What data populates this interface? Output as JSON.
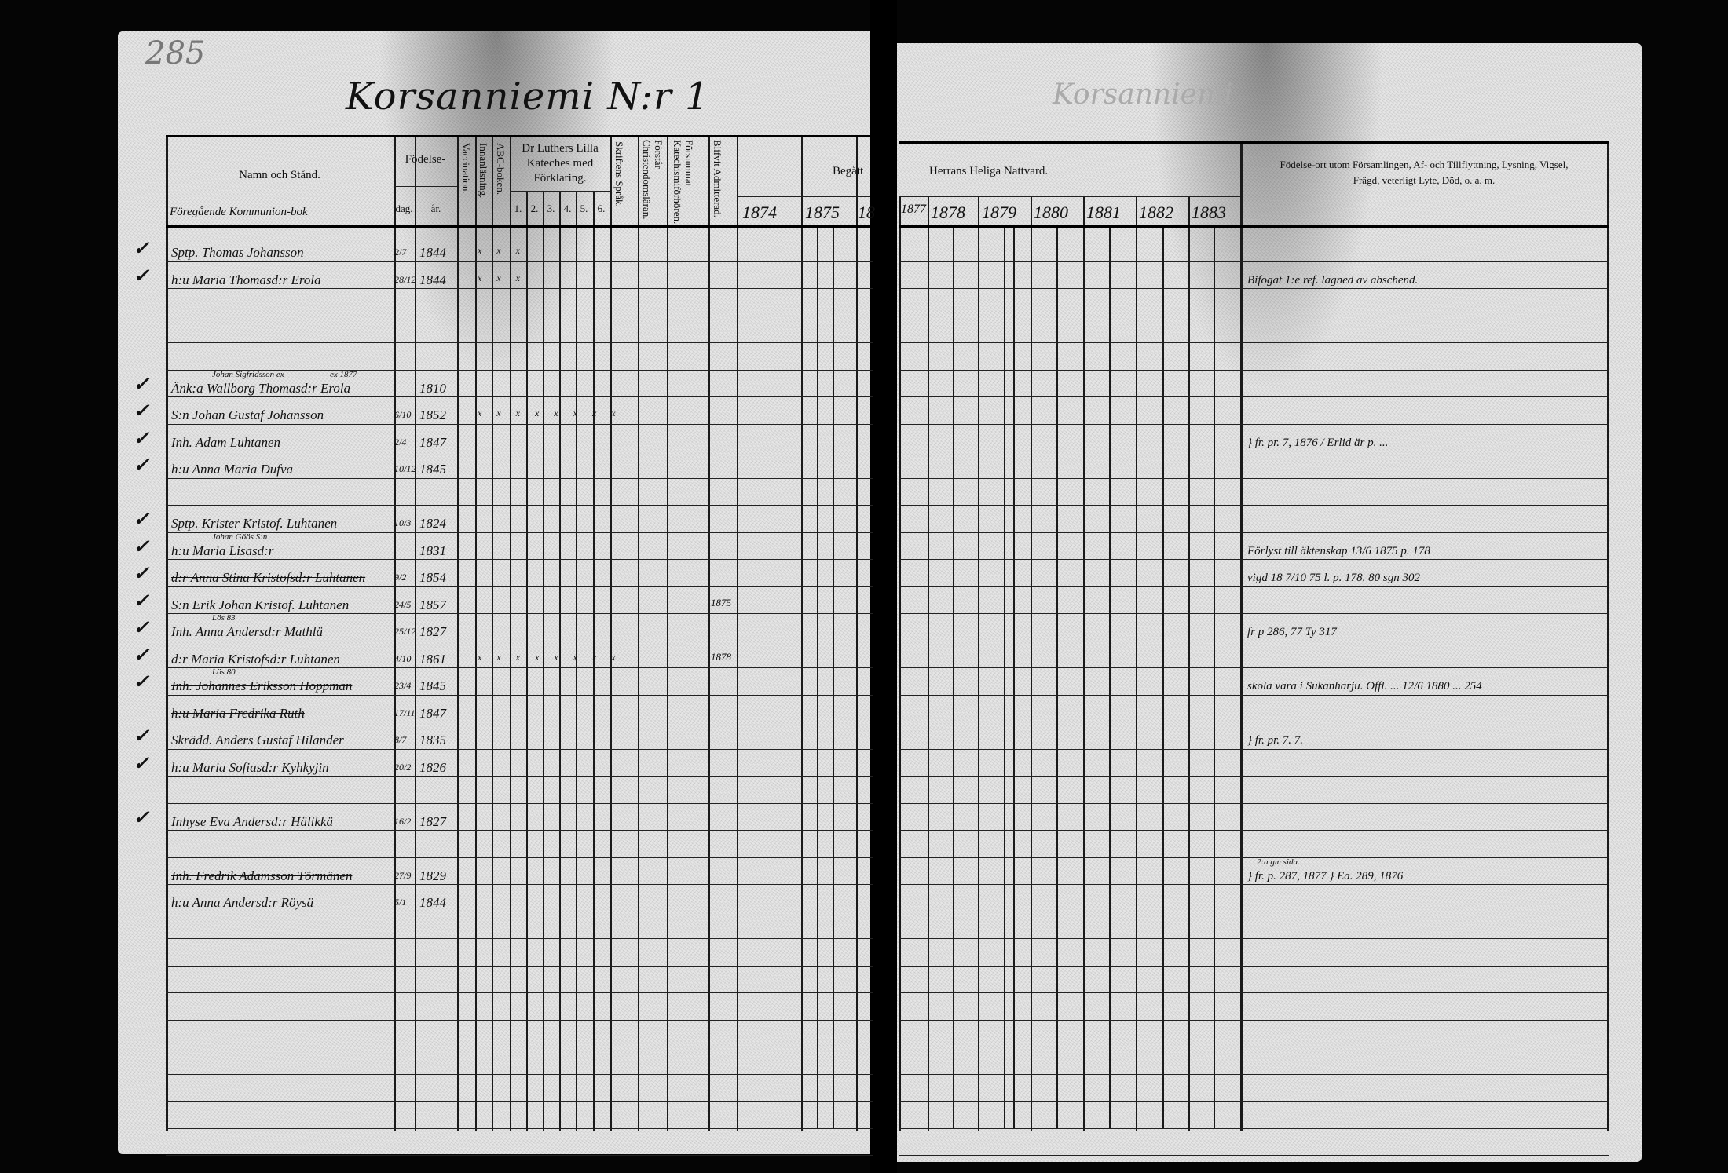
{
  "page_number": "285",
  "title": "Korsanniemi N:r 1",
  "right_faint_title": "Korsanniemi",
  "header": {
    "name_col": "Namn och Stånd.",
    "name_col_note": "Föregående Kommunion-bok",
    "birth": "Födelse-",
    "birth_day": "dag.",
    "birth_year": "år.",
    "vaccination": "Vaccination.",
    "reading": "Innanläsning.",
    "abc": "ABC-boken.",
    "catechism": "Dr Luthers Lilla Kateches med Förklaring.",
    "catechism_parts": [
      "1.",
      "2.",
      "3.",
      "4.",
      "5.",
      "6."
    ],
    "scripture": "Skriftens Språk.",
    "christianity": "Förstår Christendomsläran.",
    "missed": "Försummat Katechismiförhören.",
    "admitted": "Blifvit Admitterad.",
    "communion_left": "Begått",
    "communion_right": "Herrans Heliga Nattvard.",
    "years_left": [
      "1874",
      "1875",
      "18"
    ],
    "years_right": [
      "1877",
      "1878",
      "1879",
      "1880",
      "1881",
      "1882",
      "1883"
    ],
    "remarks_line1": "Födelse-ort utom Församlingen, Af- och Tillflyttning, Lysning, Vigsel,",
    "remarks_line2": "Frägd, veterligt Lyte, Död, o. a. m."
  },
  "rows": [
    {
      "row": 0,
      "check": "✓",
      "name": "Sptp. Thomas Johansson",
      "day": "2/7",
      "year": "1844",
      "marks": "x x x"
    },
    {
      "row": 1,
      "check": "✓",
      "name": "h:u Maria Thomasd:r Erola",
      "day": "28/12",
      "year": "1844",
      "marks": "x x x",
      "remark": "Bifogat 1:e ref. lagned av abschend."
    },
    {
      "row": 5,
      "check": "✓",
      "name": "Änk:a Wallborg Thomasd:r Erola",
      "above": "Johan Sigfridsson ex",
      "below": "ex 1877",
      "year": "1810"
    },
    {
      "row": 6,
      "check": "✓",
      "name": "S:n Johan Gustaf Johansson",
      "day": "6/10",
      "year": "1852",
      "marks": "x x x x x x x x"
    },
    {
      "row": 7,
      "check": "✓",
      "name": "Inh. Adam Luhtanen",
      "day": "2/4",
      "year": "1847",
      "remark": "} fr. pr. 7, 1876 / Erlid är p. ..."
    },
    {
      "row": 8,
      "check": "✓",
      "name": "h:u Anna Maria Dufva",
      "day": "10/12",
      "year": "1845"
    },
    {
      "row": 10,
      "check": "✓",
      "name": "Sptp. Krister Kristof. Luhtanen",
      "day": "10/3",
      "year": "1824"
    },
    {
      "row": 11,
      "check": "✓",
      "name": "h:u Maria Lisasd:r",
      "above": "Johan Göös S:n",
      "year": "1831",
      "remark": "Förlyst till äktenskap 13/6 1875 p. 178"
    },
    {
      "row": 12,
      "check": "✓",
      "name": "d:r Anna Stina Kristofsd:r Luhtanen",
      "struck": true,
      "day": "9/2",
      "year": "1854",
      "remark": "vigd 18 7/10 75 l. p. 178. 80 sgn 302"
    },
    {
      "row": 13,
      "check": "✓",
      "name": "S:n Erik Johan Kristof. Luhtanen",
      "day": "24/5",
      "year": "1857",
      "admitted": "1875"
    },
    {
      "row": 14,
      "check": "✓",
      "name": "Inh. Anna Andersd:r Mathlä",
      "above": "Lös 83",
      "day": "25/12",
      "year": "1827",
      "remark": "fr p 286, 77  Ty 317"
    },
    {
      "row": 15,
      "check": "✓",
      "name": "d:r Maria Kristofsd:r Luhtanen",
      "day": "4/10",
      "year": "1861",
      "marks": "x x x x x x x x",
      "admitted": "1878"
    },
    {
      "row": 16,
      "check": "✓",
      "name": "Inh. Johannes Eriksson Hoppman",
      "struck": true,
      "above": "Lös 80",
      "day": "23/4",
      "year": "1845",
      "remark": "skola vara i Sukanharju. Offl. ... 12/6 1880 ... 254"
    },
    {
      "row": 17,
      "check": "",
      "name": "h:u Maria Fredrika Ruth",
      "struck": true,
      "day": "17/11",
      "year": "1847"
    },
    {
      "row": 18,
      "check": "✓",
      "name": "Skrädd. Anders Gustaf Hilander",
      "day": "8/7",
      "year": "1835",
      "remark": "} fr. pr. 7. 7."
    },
    {
      "row": 19,
      "check": "✓",
      "name": "h:u Maria Sofiasd:r Kyhkyjin",
      "day": "20/2",
      "year": "1826"
    },
    {
      "row": 21,
      "check": "✓",
      "name": "Inhyse Eva Andersd:r Hälikkä",
      "day": "16/2",
      "year": "1827"
    },
    {
      "row": 23,
      "check": "",
      "name": "Inh. Fredrik Adamsson Törmänen",
      "struck": true,
      "day": "27/9",
      "year": "1829",
      "remark_above": "2:a gm sida.",
      "remark": "} fr. p. 287, 1877   } Ea. 289, 1876"
    },
    {
      "row": 24,
      "check": "",
      "name": "h:u Anna Andersd:r Röysä",
      "day": "5/1",
      "year": "1844"
    }
  ],
  "colors": {
    "paper": "#e6e6e6",
    "ink": "#111111",
    "background": "#050505"
  }
}
